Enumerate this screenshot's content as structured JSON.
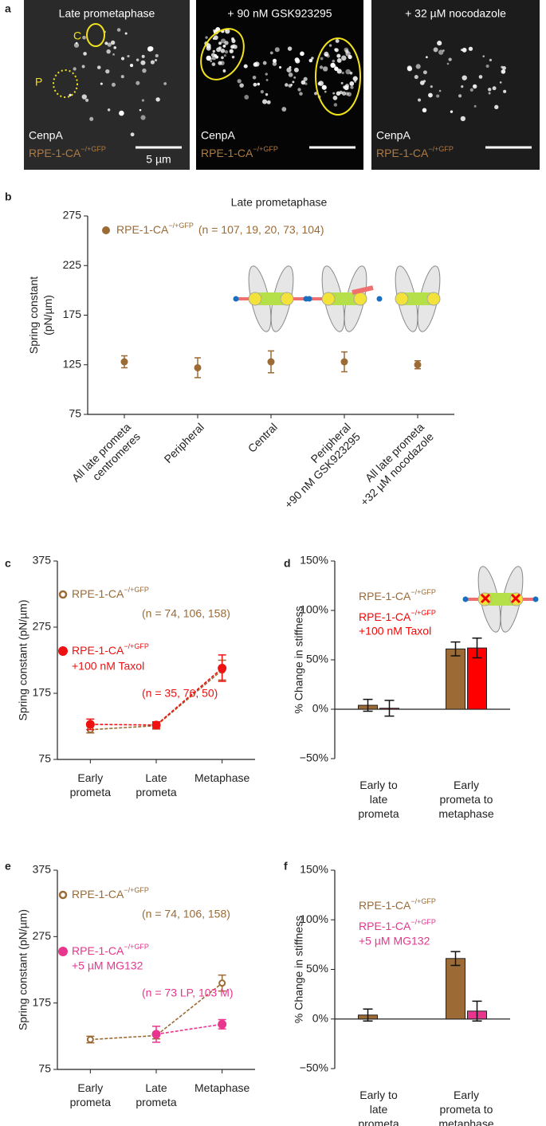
{
  "image_panel": {
    "label": "a",
    "images": [
      {
        "title": "Late prometaphase",
        "stain": "CenpA",
        "cell_line": "RPE-1-CA",
        "cell_line_sup": "−/+GFP",
        "scale_bar": "5 µm",
        "annotations": [
          "C",
          "P"
        ]
      },
      {
        "title": "+ 90 nM GSK923295",
        "stain": "CenpA",
        "cell_line": "RPE-1-CA",
        "cell_line_sup": "−/+GFP"
      },
      {
        "title": "+ 32 µM nocodazole",
        "stain": "CenpA",
        "cell_line": "RPE-1-CA",
        "cell_line_sup": "−/+GFP"
      }
    ]
  },
  "chart_data": [
    {
      "label": "b",
      "type": "point",
      "title": "Late prometaphase",
      "y_label": [
        "Spring constant",
        "(pN/µm)"
      ],
      "categories": [
        [
          "All late prometa",
          "centromeres"
        ],
        [
          "Peripheral"
        ],
        [
          "Central"
        ],
        [
          "Peripheral",
          "+90 nM GSK923295"
        ],
        [
          "All late prometa",
          "+32 µM nocodazole"
        ]
      ],
      "series": [
        {
          "name": "RPE-1-CA",
          "name_sup": "−/+GFP",
          "n_label": "(n = 107, 19, 20, 73, 104)",
          "color": "#9b6a35",
          "marker": "filled",
          "values": [
            128,
            122,
            128,
            128,
            125
          ],
          "errors": [
            6,
            10,
            11,
            10,
            4
          ]
        }
      ],
      "ylim": [
        75,
        275
      ],
      "yticks": [
        75,
        125,
        175,
        225,
        275
      ]
    },
    {
      "label": "c",
      "type": "line",
      "y_label": "Spring constant (pN/µm)",
      "categories": [
        [
          "Early",
          "prometa"
        ],
        [
          "Late",
          "prometa"
        ],
        [
          "Metaphase"
        ]
      ],
      "series": [
        {
          "name": "RPE-1-CA",
          "name_sup": "−/+GFP",
          "n_label": "(n = 74, 106, 158)",
          "color": "#9b6a35",
          "marker": "open",
          "values": [
            120,
            126,
            210
          ],
          "errors": [
            5,
            5,
            15
          ]
        },
        {
          "name": "RPE-1-CA",
          "name_sup": "−/+GFP",
          "name_line2": "+100 nM Taxol",
          "n_label": "(n = 35, 76, 50)",
          "color": "#ee1111",
          "marker": "filled",
          "values": [
            128,
            127,
            213
          ],
          "errors": [
            8,
            5,
            20
          ]
        }
      ],
      "ylim": [
        75,
        375
      ],
      "yticks": [
        75,
        175,
        275,
        375
      ]
    },
    {
      "label": "d",
      "type": "bar",
      "y_label": "% Change in stiffness",
      "categories": [
        [
          "Early to",
          "late",
          "prometa"
        ],
        [
          "Early",
          "prometa to",
          "metaphase"
        ]
      ],
      "series": [
        {
          "name": "RPE-1-CA",
          "name_sup": "−/+GFP",
          "color": "#9b6a35",
          "values": [
            4,
            61
          ],
          "errors": [
            6,
            7
          ]
        },
        {
          "name": "RPE-1-CA",
          "name_sup": "−/+GFP",
          "name_line2": "+100 nM Taxol",
          "color": "#ff0000",
          "values": [
            1,
            62
          ],
          "errors": [
            8,
            10
          ]
        }
      ],
      "ylim": [
        -50,
        150
      ],
      "yticks": [
        {
          "value": -50,
          "label": "−50%"
        },
        {
          "value": 0,
          "label": "0%"
        },
        {
          "value": 50,
          "label": "50%"
        },
        {
          "value": 100,
          "label": "100%"
        },
        {
          "value": 150,
          "label": "150%"
        }
      ]
    },
    {
      "label": "e",
      "type": "line",
      "y_label": "Spring constant (pN/µm)",
      "categories": [
        [
          "Early",
          "prometa"
        ],
        [
          "Late",
          "prometa"
        ],
        [
          "Metaphase"
        ]
      ],
      "series": [
        {
          "name": "RPE-1-CA",
          "name_sup": "−/+GFP",
          "n_label": "(n = 74, 106, 158)",
          "color": "#9b6a35",
          "marker": "open",
          "values": [
            120,
            126,
            205
          ],
          "errors": [
            5,
            5,
            12
          ]
        },
        {
          "name": "RPE-1-CA",
          "name_sup": "−/+GFP",
          "name_line2": "+5 µM MG132",
          "n_label": "(n = 73 LP, 103 M)",
          "color": "#e8358e",
          "marker": "filled",
          "values": [
            null,
            128,
            143
          ],
          "errors": [
            null,
            12,
            7
          ]
        }
      ],
      "ylim": [
        75,
        375
      ],
      "yticks": [
        75,
        175,
        275,
        375
      ]
    },
    {
      "label": "f",
      "type": "bar",
      "y_label": "% Change in stiffness",
      "categories": [
        [
          "Early to",
          "late",
          "prometa"
        ],
        [
          "Early",
          "prometa to",
          "metaphase"
        ]
      ],
      "series": [
        {
          "name": "RPE-1-CA",
          "name_sup": "−/+GFP",
          "color": "#9b6a35",
          "values": [
            4,
            61
          ],
          "errors": [
            6,
            7
          ]
        },
        {
          "name": "RPE-1-CA",
          "name_sup": "−/+GFP",
          "name_line2": "+5 µM MG132",
          "color": "#e8358e",
          "values": [
            null,
            8
          ],
          "errors": [
            null,
            10
          ]
        }
      ],
      "ylim": [
        -50,
        150
      ],
      "yticks": [
        {
          "value": -50,
          "label": "−50%"
        },
        {
          "value": 0,
          "label": "0%"
        },
        {
          "value": 50,
          "label": "50%"
        },
        {
          "value": 100,
          "label": "100%"
        },
        {
          "value": 150,
          "label": "150%"
        }
      ]
    }
  ]
}
